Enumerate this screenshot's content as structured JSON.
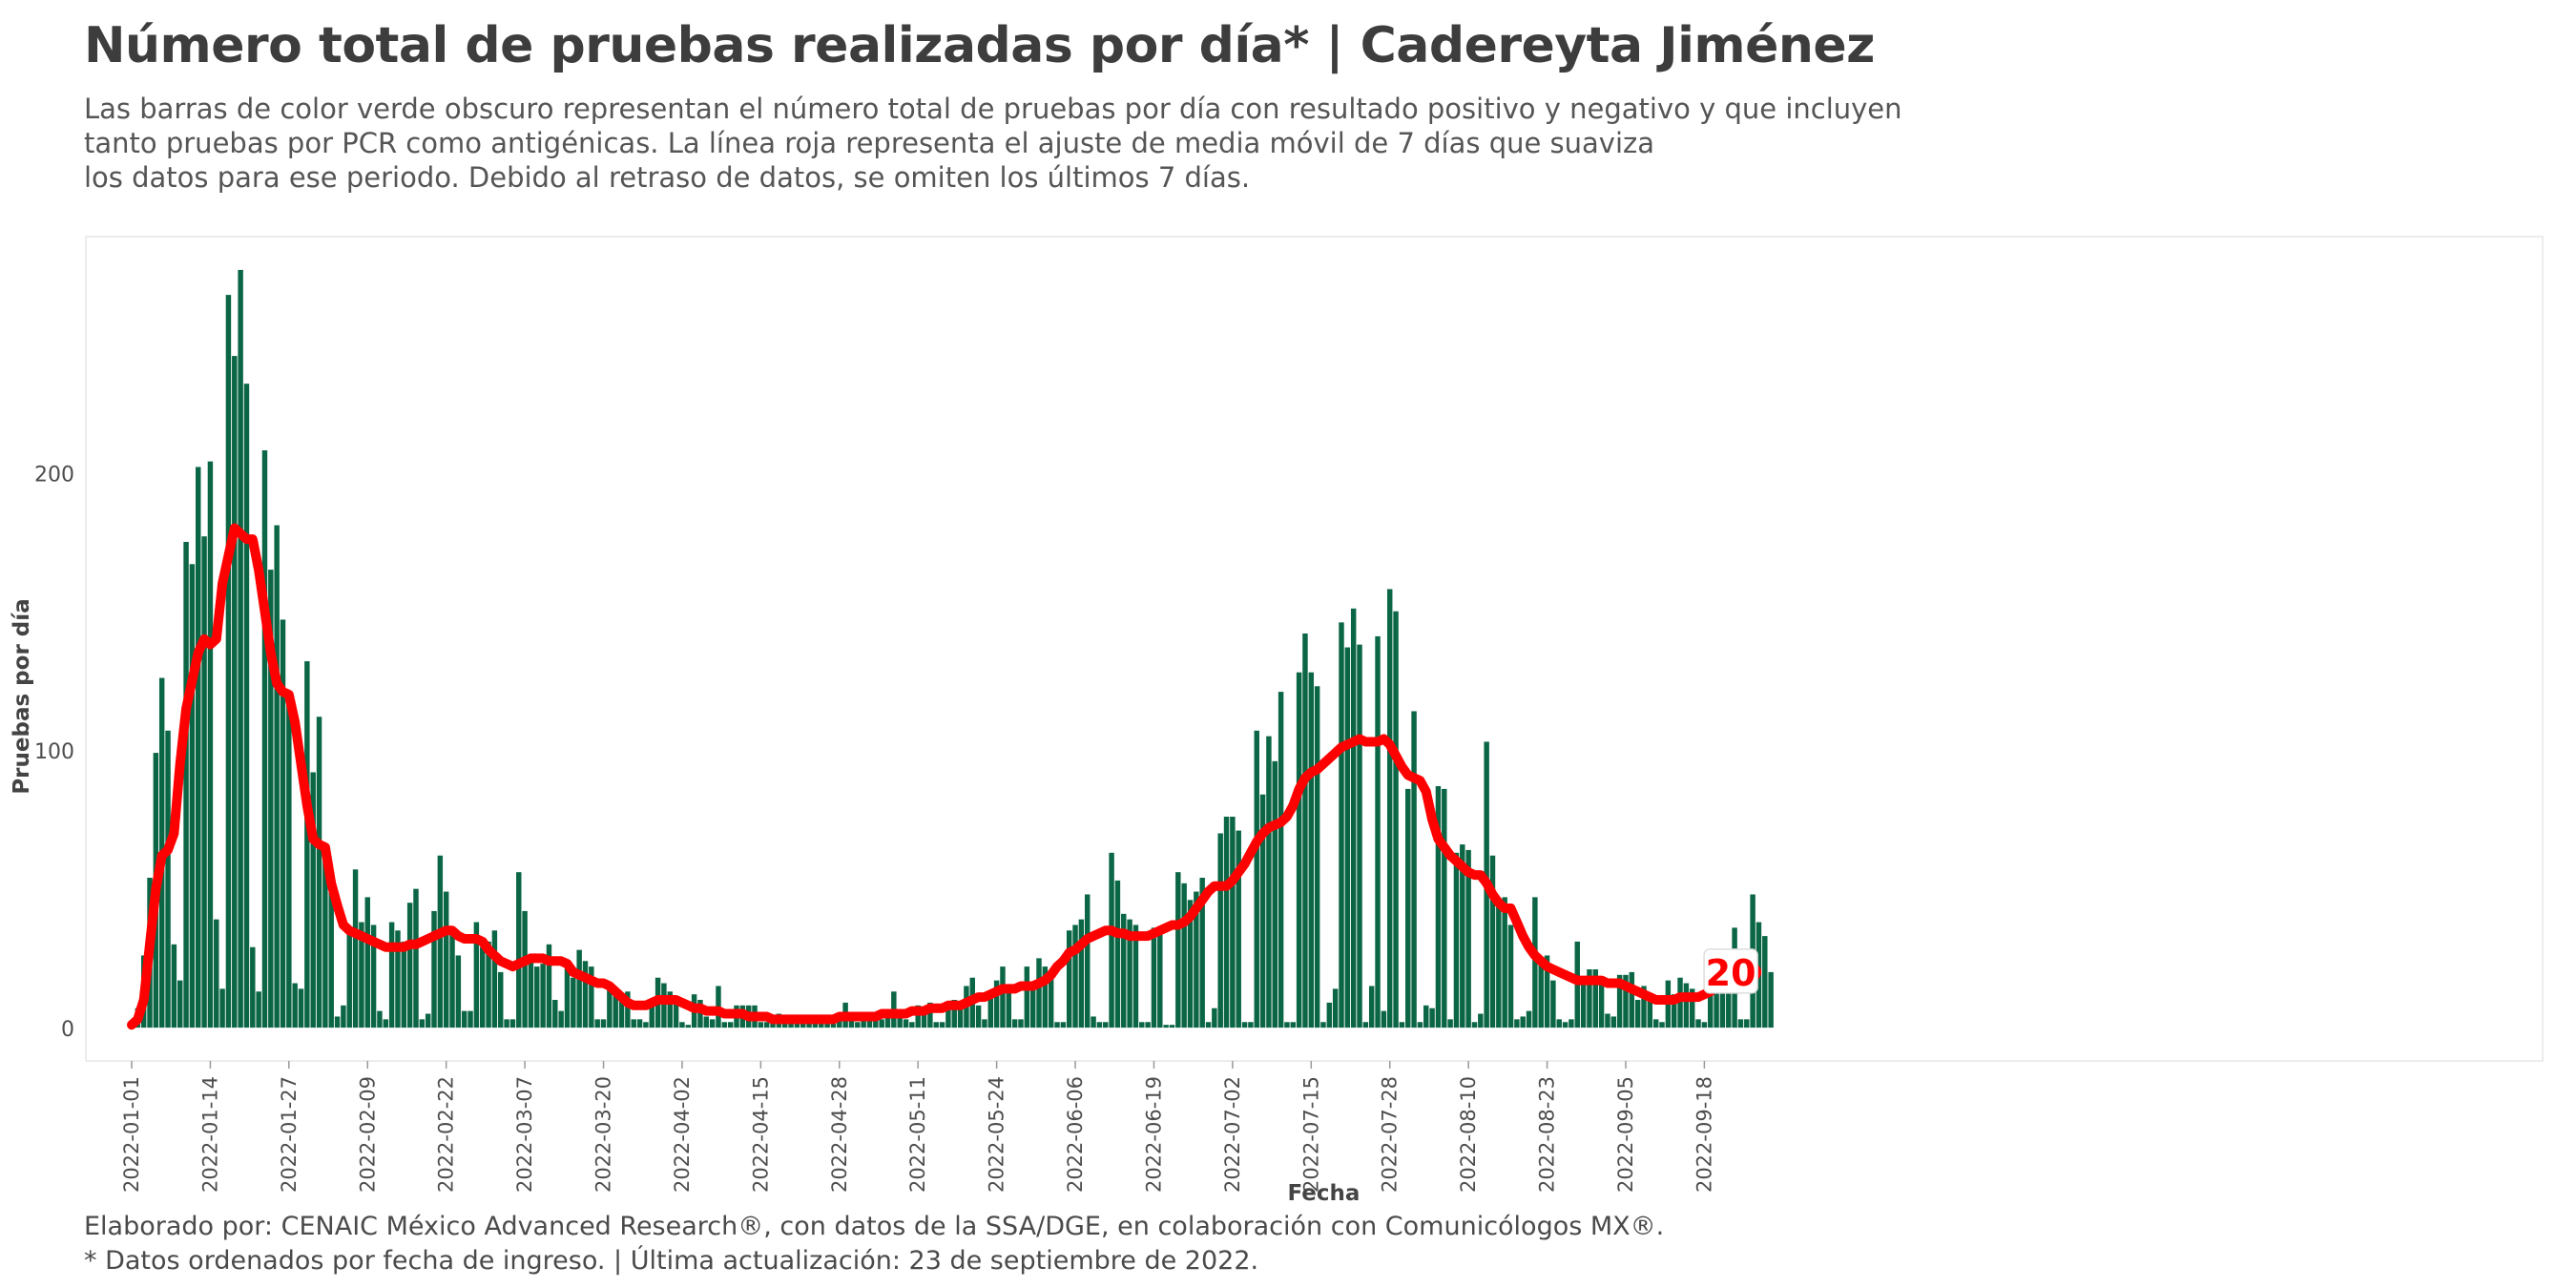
{
  "title": "Número total de pruebas realizadas por día* | Cadereyta Jiménez",
  "subtitle_lines": [
    "Las barras de color verde obscuro representan el número total de pruebas por día con resultado positivo y negativo y que incluyen",
    "tanto pruebas por PCR como antigénicas. La línea roja representa el ajuste de media móvil de 7 días que suaviza",
    "los datos para ese periodo. Debido al retraso de datos, se omiten los últimos 7 días."
  ],
  "caption_lines": [
    "Elaborado por: CENAIC México Advanced Research®, con datos de la SSA/DGE, en colaboración con Comunicólogos MX®.",
    "* Datos ordenados por fecha de ingreso. | Última actualización: 23 de septiembre de 2022."
  ],
  "colors": {
    "bar": "#0b6645",
    "line": "#ff0000",
    "text": "#3d3d3d"
  },
  "chart_data": {
    "type": "bar",
    "title": "Número total de pruebas realizadas por día* | Cadereyta Jiménez",
    "xlabel": "Fecha",
    "ylabel": "Pruebas por día",
    "ylim": [
      -12,
      285
    ],
    "yticks": [
      0,
      100,
      200
    ],
    "start_date": "2022-01-01",
    "xticks": [
      "2022-01-01",
      "2022-01-14",
      "2022-01-27",
      "2022-02-09",
      "2022-02-22",
      "2022-03-07",
      "2022-03-20",
      "2022-04-02",
      "2022-04-15",
      "2022-04-28",
      "2022-05-11",
      "2022-05-24",
      "2022-06-06",
      "2022-06-19",
      "2022-07-02",
      "2022-07-15",
      "2022-07-28",
      "2022-08-10",
      "2022-08-23",
      "2022-09-05",
      "2022-09-18"
    ],
    "last_value_label": "20",
    "series": [
      {
        "name": "Pruebas por día",
        "kind": "bar",
        "values": [
          2,
          7,
          26,
          54,
          99,
          126,
          107,
          30,
          17,
          175,
          167,
          202,
          177,
          204,
          39,
          14,
          264,
          242,
          273,
          232,
          29,
          13,
          208,
          165,
          181,
          147,
          119,
          16,
          14,
          132,
          92,
          112,
          64,
          50,
          4,
          8,
          35,
          57,
          38,
          47,
          37,
          6,
          3,
          38,
          35,
          31,
          45,
          50,
          3,
          5,
          42,
          62,
          49,
          36,
          26,
          6,
          6,
          38,
          29,
          31,
          35,
          20,
          3,
          3,
          56,
          42,
          24,
          22,
          23,
          30,
          10,
          6,
          22,
          18,
          28,
          24,
          22,
          3,
          3,
          14,
          14,
          10,
          13,
          3,
          3,
          2,
          10,
          18,
          16,
          13,
          11,
          2,
          1,
          12,
          10,
          4,
          3,
          15,
          2,
          2,
          8,
          8,
          8,
          8,
          2,
          2,
          4,
          5,
          4,
          4,
          2,
          2,
          2,
          3,
          4,
          3,
          3,
          3,
          9,
          4,
          2,
          3,
          3,
          3,
          3,
          6,
          13,
          5,
          3,
          2,
          8,
          6,
          9,
          2,
          2,
          8,
          10,
          9,
          15,
          18,
          8,
          3,
          13,
          17,
          22,
          13,
          3,
          3,
          22,
          16,
          25,
          22,
          18,
          2,
          2,
          35,
          37,
          39,
          48,
          4,
          2,
          2,
          63,
          53,
          41,
          39,
          37,
          2,
          2,
          36,
          36,
          1,
          1,
          56,
          52,
          46,
          49,
          54,
          2,
          7,
          70,
          76,
          76,
          71,
          2,
          2,
          107,
          84,
          105,
          96,
          121,
          2,
          2,
          128,
          142,
          128,
          123,
          2,
          9,
          14,
          146,
          137,
          151,
          138,
          2,
          15,
          141,
          6,
          158,
          150,
          2,
          86,
          114,
          2,
          8,
          7,
          87,
          86,
          3,
          63,
          66,
          64,
          2,
          5,
          103,
          62,
          45,
          47,
          37,
          3,
          4,
          6,
          47,
          25,
          26,
          17,
          3,
          2,
          3,
          31,
          18,
          21,
          21,
          18,
          5,
          4,
          19,
          19,
          20,
          10,
          15,
          10,
          3,
          2,
          17,
          12,
          18,
          16,
          14,
          3,
          2,
          15,
          17,
          20,
          26,
          36,
          3,
          3,
          48,
          38,
          33,
          20
        ]
      },
      {
        "name": "Media móvil 7 días",
        "kind": "line",
        "values": [
          1,
          3,
          10,
          30,
          50,
          62,
          64,
          70,
          95,
          115,
          125,
          135,
          140,
          138,
          140,
          160,
          170,
          180,
          178,
          176,
          176,
          165,
          150,
          135,
          124,
          121,
          120,
          110,
          95,
          80,
          68,
          66,
          65,
          52,
          44,
          37,
          35,
          34,
          33,
          32,
          31,
          30,
          29,
          29,
          29,
          29,
          30,
          30,
          31,
          32,
          33,
          34,
          35,
          35,
          33,
          32,
          32,
          32,
          31,
          28,
          26,
          24,
          23,
          22,
          23,
          24,
          25,
          25,
          25,
          24,
          24,
          24,
          23,
          20,
          19,
          18,
          17,
          16,
          16,
          15,
          13,
          11,
          9,
          8,
          8,
          8,
          9,
          10,
          10,
          10,
          10,
          9,
          8,
          7,
          7,
          6,
          6,
          6,
          5,
          5,
          5,
          5,
          4,
          4,
          4,
          4,
          3,
          3,
          3,
          3,
          3,
          3,
          3,
          3,
          3,
          3,
          3,
          4,
          4,
          4,
          4,
          4,
          4,
          4,
          5,
          5,
          5,
          5,
          5,
          6,
          6,
          6,
          7,
          7,
          7,
          8,
          8,
          8,
          9,
          10,
          11,
          11,
          12,
          13,
          14,
          14,
          14,
          15,
          15,
          15,
          16,
          17,
          19,
          22,
          24,
          27,
          28,
          30,
          32,
          33,
          34,
          35,
          35,
          34,
          34,
          33,
          33,
          33,
          33,
          34,
          35,
          36,
          37,
          37,
          38,
          40,
          43,
          46,
          49,
          51,
          51,
          51,
          53,
          56,
          59,
          63,
          67,
          70,
          72,
          73,
          74,
          76,
          80,
          86,
          90,
          92,
          93,
          95,
          97,
          99,
          101,
          102,
          103,
          104,
          103,
          103,
          103,
          104,
          102,
          98,
          94,
          91,
          90,
          89,
          85,
          75,
          68,
          65,
          62,
          60,
          58,
          56,
          55,
          55,
          52,
          48,
          45,
          43,
          43,
          38,
          33,
          29,
          26,
          24,
          22,
          21,
          20,
          19,
          18,
          17,
          17,
          17,
          17,
          17,
          16,
          16,
          16,
          15,
          14,
          13,
          12,
          11,
          10,
          10,
          10,
          10,
          11,
          11,
          11,
          11,
          12,
          13,
          15,
          17,
          19,
          20
        ]
      }
    ]
  }
}
